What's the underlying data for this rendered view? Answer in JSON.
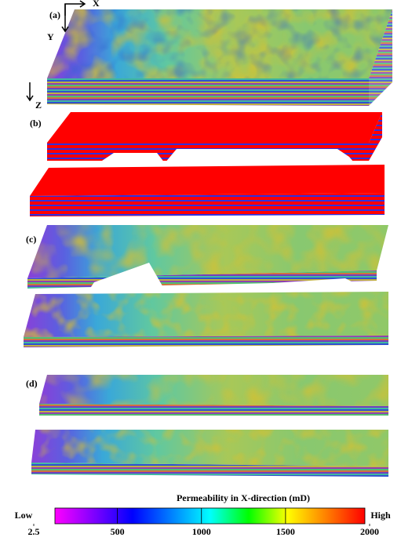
{
  "panels": [
    {
      "label": "(a)"
    },
    {
      "label": "(b)"
    },
    {
      "label": "(c)"
    },
    {
      "label": "(d)"
    }
  ],
  "axes": {
    "x": "X",
    "y": "Y",
    "z": "Z"
  },
  "colorbar": {
    "title": "Permeability in X-direction (mD)",
    "low_label": "Low",
    "high_label": "High",
    "range": [
      2.5,
      2000
    ],
    "ticks": [
      2.5,
      500,
      1000,
      1500,
      2000
    ]
  }
}
